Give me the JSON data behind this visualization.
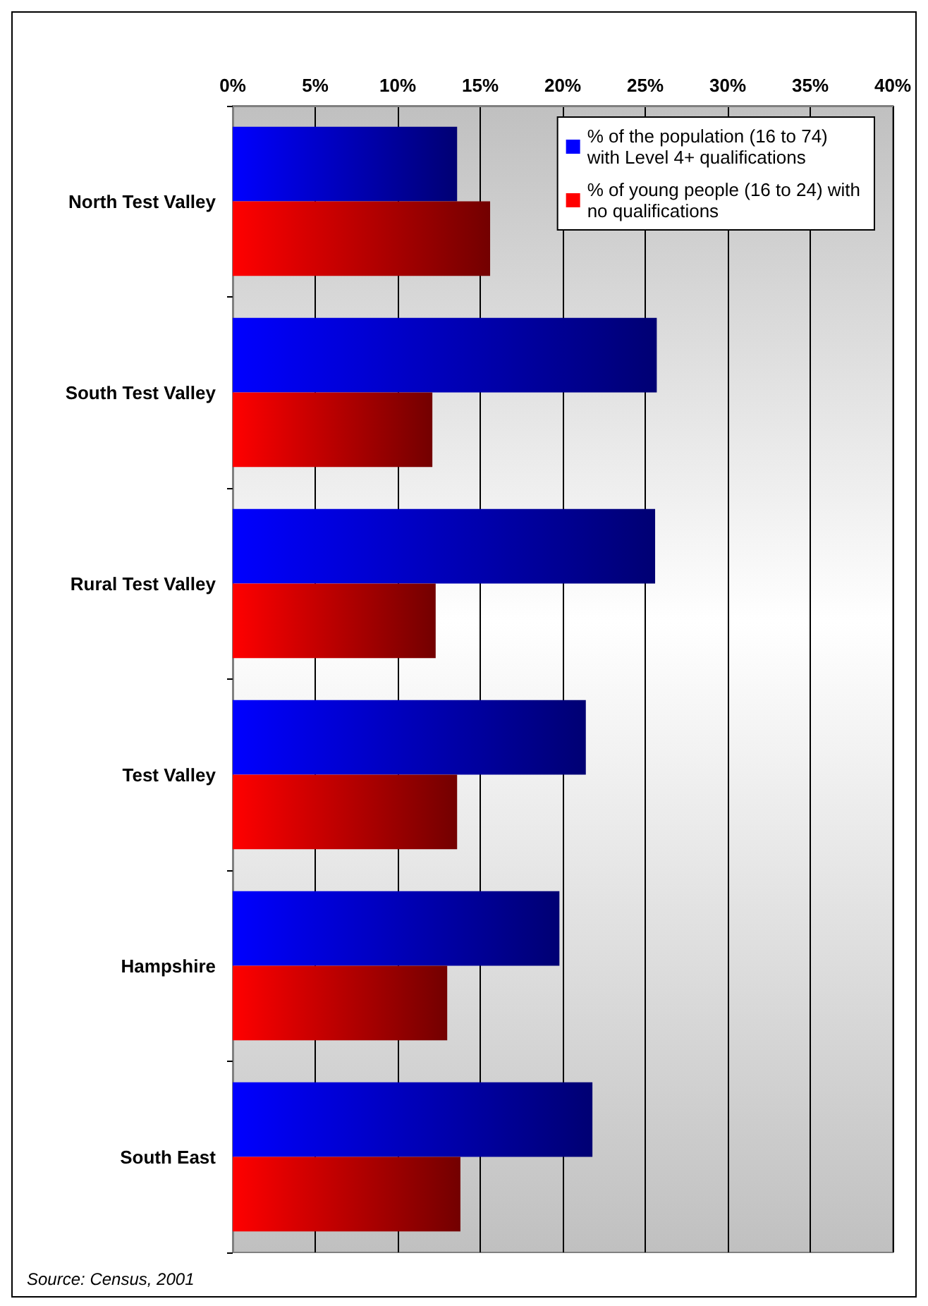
{
  "chart_data": {
    "type": "bar",
    "orientation": "horizontal",
    "categories": [
      "North Test Valley",
      "South Test Valley",
      "Rural Test Valley",
      "Test Valley",
      "Hampshire",
      "South East"
    ],
    "series": [
      {
        "name": "% of the population (16 to 74)\nwith Level 4+ qualifications",
        "color": "#0000ff",
        "values": [
          13.6,
          25.7,
          25.6,
          21.4,
          19.8,
          21.8
        ]
      },
      {
        "name": "% of young people (16 to 24) with\nno qualifications",
        "color": "#ff0000",
        "values": [
          15.6,
          12.1,
          12.3,
          13.6,
          13.0,
          13.8
        ]
      }
    ],
    "xlim": [
      0,
      40
    ],
    "xticks": [
      {
        "value": 0,
        "label": "0%"
      },
      {
        "value": 5,
        "label": "5%"
      },
      {
        "value": 10,
        "label": "10%"
      },
      {
        "value": 15,
        "label": "15%"
      },
      {
        "value": 20,
        "label": "20%"
      },
      {
        "value": 25,
        "label": "25%"
      },
      {
        "value": 30,
        "label": "30%"
      },
      {
        "value": 35,
        "label": "35%"
      },
      {
        "value": 40,
        "label": "40%"
      }
    ],
    "grid": "x",
    "legend": "top right",
    "annotations": [
      "Source: Census, 2001"
    ]
  }
}
